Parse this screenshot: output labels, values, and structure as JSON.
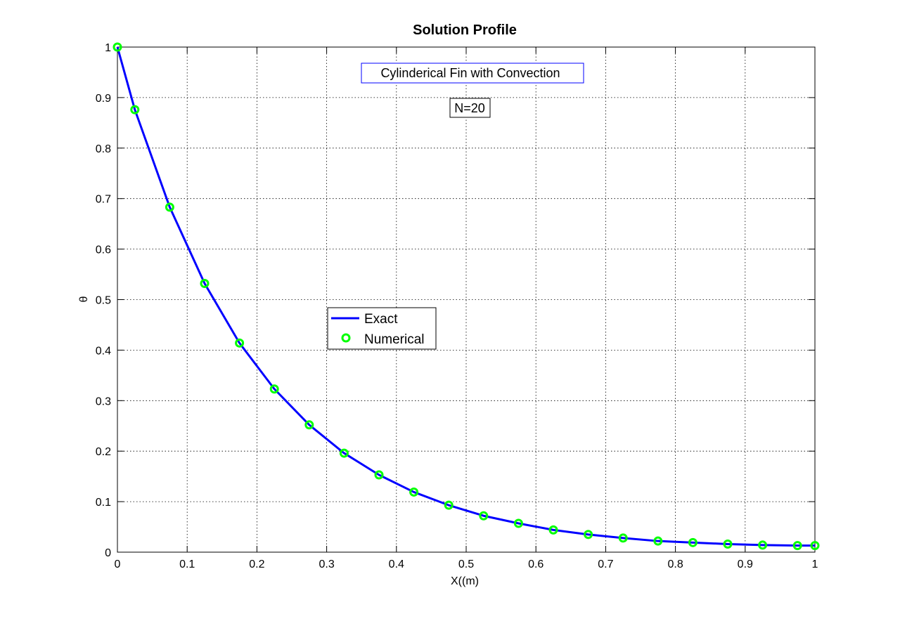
{
  "chart_data": {
    "type": "line",
    "title": "Solution Profile",
    "xlabel": "X((m)",
    "ylabel": "θ",
    "xlim": [
      0,
      1
    ],
    "ylim": [
      0,
      1
    ],
    "x_ticks": [
      "0",
      "0.1",
      "0.2",
      "0.3",
      "0.4",
      "0.5",
      "0.6",
      "0.7",
      "0.8",
      "0.9",
      "1"
    ],
    "y_ticks": [
      "0",
      "0.1",
      "0.2",
      "0.3",
      "0.4",
      "0.5",
      "0.6",
      "0.7",
      "0.8",
      "0.9",
      "1"
    ],
    "grid": true,
    "legend_position": "center-left",
    "annotations": [
      "Cylinderical Fin with Convection",
      "N=20"
    ],
    "series": [
      {
        "name": "Exact",
        "style": "line",
        "color": "#0000ff",
        "x": [
          0,
          0.025,
          0.075,
          0.125,
          0.175,
          0.225,
          0.275,
          0.325,
          0.375,
          0.425,
          0.475,
          0.525,
          0.575,
          0.625,
          0.675,
          0.725,
          0.775,
          0.825,
          0.875,
          0.925,
          0.975,
          1
        ],
        "y": [
          1.0,
          0.876,
          0.683,
          0.532,
          0.414,
          0.323,
          0.252,
          0.196,
          0.153,
          0.119,
          0.093,
          0.072,
          0.057,
          0.044,
          0.035,
          0.028,
          0.022,
          0.019,
          0.016,
          0.014,
          0.013,
          0.013
        ]
      },
      {
        "name": "Numerical",
        "style": "marker",
        "marker": "circle",
        "color": "#00ff00",
        "x": [
          0,
          0.025,
          0.075,
          0.125,
          0.175,
          0.225,
          0.275,
          0.325,
          0.375,
          0.425,
          0.475,
          0.525,
          0.575,
          0.625,
          0.675,
          0.725,
          0.775,
          0.825,
          0.875,
          0.925,
          0.975,
          1
        ],
        "y": [
          1.0,
          0.876,
          0.683,
          0.532,
          0.414,
          0.323,
          0.252,
          0.196,
          0.153,
          0.119,
          0.093,
          0.072,
          0.057,
          0.044,
          0.035,
          0.028,
          0.022,
          0.019,
          0.016,
          0.014,
          0.013,
          0.013
        ]
      }
    ]
  }
}
